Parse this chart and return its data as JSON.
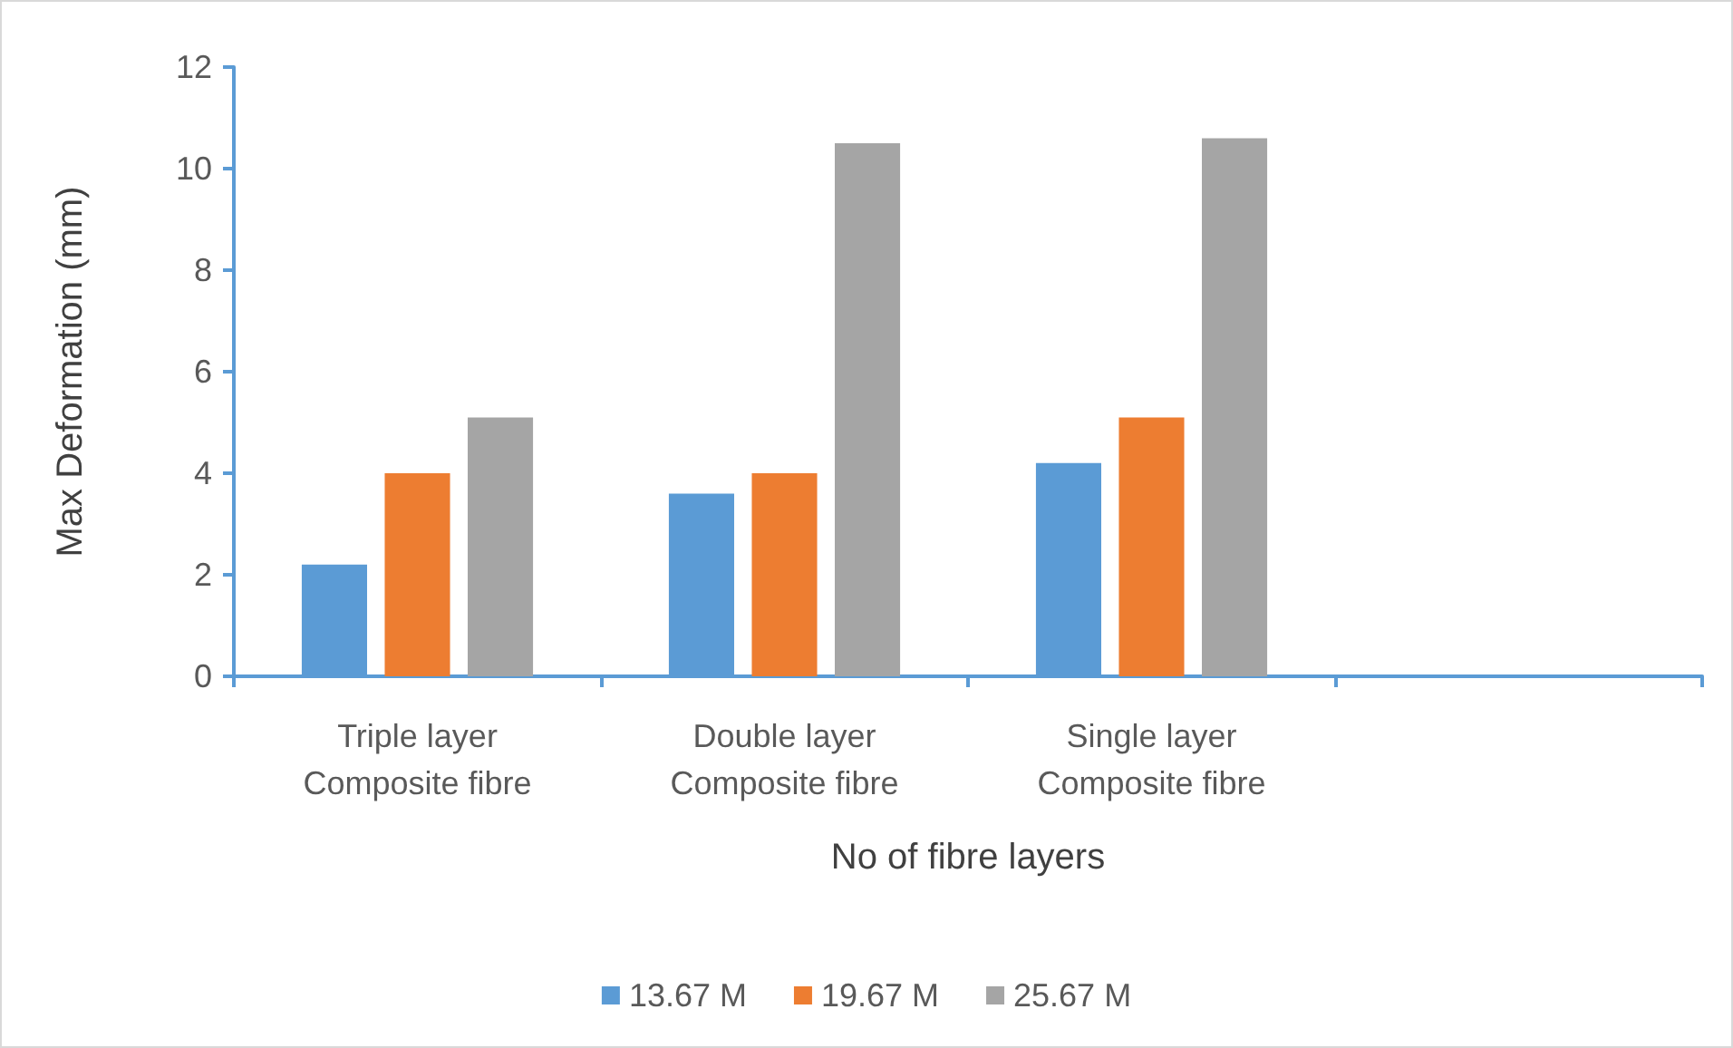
{
  "chart_data": {
    "type": "bar",
    "xlabel": "No of fibre layers",
    "ylabel": "Max Deformation (mm)",
    "categories": [
      "Triple layer\nComposite fibre",
      "Double layer\nComposite fibre",
      "Single layer\nComposite fibre",
      null
    ],
    "series": [
      {
        "name": "13.67 M",
        "color": "#5b9bd5",
        "values": [
          2.2,
          3.6,
          4.2,
          null
        ]
      },
      {
        "name": "19.67 M",
        "color": "#ed7d31",
        "values": [
          4.0,
          4.0,
          5.1,
          null
        ]
      },
      {
        "name": "25.67 M",
        "color": "#a5a5a5",
        "values": [
          5.1,
          10.5,
          10.6,
          null
        ]
      }
    ],
    "ylim": [
      0,
      12
    ],
    "yticks": [
      0,
      2,
      4,
      6,
      8,
      10,
      12
    ],
    "grid": false,
    "legend": "bottom"
  }
}
